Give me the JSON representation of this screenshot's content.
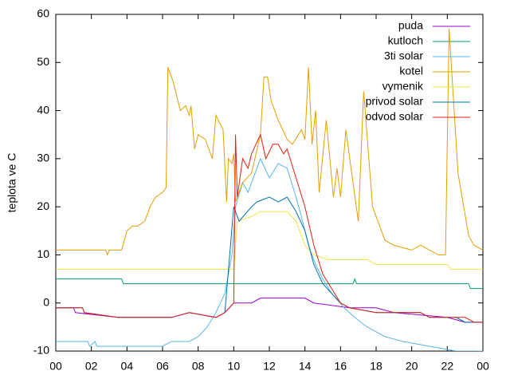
{
  "chart_data": {
    "type": "line",
    "ylabel": "teplota ve C",
    "xlim": [
      0,
      24
    ],
    "ylim": [
      -10,
      60
    ],
    "xticks": [
      {
        "value": 0,
        "label": "00"
      },
      {
        "value": 2,
        "label": "02"
      },
      {
        "value": 4,
        "label": "04"
      },
      {
        "value": 6,
        "label": "06"
      },
      {
        "value": 8,
        "label": "08"
      },
      10,
      12,
      14,
      16,
      18,
      20,
      22,
      {
        "value": 24,
        "label": "00"
      }
    ],
    "yticks": [
      -10,
      0,
      10,
      20,
      30,
      40,
      50,
      60
    ],
    "grid": false,
    "legend": "top-right",
    "series": [
      {
        "name": "puda",
        "color": "#9400d3",
        "x": [
          0,
          1,
          1.1,
          3.5,
          6.5,
          7.5,
          9,
          9.5,
          10,
          11,
          11.5,
          14,
          14.5,
          16.5,
          18,
          19,
          22,
          23,
          24
        ],
        "values": [
          -1,
          -1,
          -2,
          -3,
          -3,
          -2,
          -3,
          -2,
          0,
          0,
          1,
          1,
          0,
          -1,
          -1,
          -2,
          -3,
          -4,
          -4
        ]
      },
      {
        "name": "kutloch",
        "color": "#009e73",
        "x": [
          0,
          3.7,
          3.8,
          16.7,
          16.8,
          16.9,
          23.2,
          23.3,
          24
        ],
        "values": [
          5,
          5,
          4,
          4,
          5,
          4,
          4,
          3,
          3
        ]
      },
      {
        "name": "3ti solar",
        "color": "#56b4e9",
        "x": [
          0,
          1.8,
          1.9,
          2.2,
          2.3,
          6,
          6.5,
          7.5,
          8,
          8.5,
          9,
          9.5,
          9.9,
          10.1,
          10.5,
          10.8,
          11.2,
          11.5,
          12,
          12.5,
          13,
          13.5,
          13.8,
          14.2,
          14.6,
          15,
          15.5,
          16.2,
          16.8,
          17.5,
          18.5,
          19.5,
          21,
          22.5,
          24
        ],
        "values": [
          -8,
          -8,
          -9,
          -8,
          -9,
          -9,
          -8,
          -8,
          -7,
          -5,
          -2,
          2,
          10,
          20,
          25,
          23,
          27,
          30,
          26,
          29,
          28,
          22,
          18,
          12,
          8,
          5,
          2,
          -1,
          -3,
          -5,
          -7,
          -8,
          -9,
          -10,
          -10
        ]
      },
      {
        "name": "kotel",
        "color": "#e69f00",
        "x": [
          0,
          2.8,
          2.9,
          3,
          3.7,
          4,
          4.3,
          4.6,
          5,
          5.3,
          5.6,
          6,
          6.2,
          6.3,
          6.6,
          7,
          7.3,
          7.5,
          7.6,
          7.8,
          8,
          8.4,
          8.8,
          9,
          9.4,
          9.6,
          9.7,
          9.9,
          10,
          10.1,
          10.5,
          11,
          11.5,
          11.7,
          11.9,
          12.1,
          12.5,
          13,
          13.3,
          13.8,
          14,
          14.2,
          14.4,
          14.6,
          14.8,
          15.2,
          15.6,
          15.8,
          16,
          16.3,
          16.7,
          17,
          17.3,
          17.8,
          18.5,
          19,
          20,
          20.5,
          21.5,
          21.9,
          22.1,
          22.6,
          23.2,
          23.5,
          24
        ],
        "values": [
          11,
          11,
          10,
          11,
          11,
          15,
          16,
          16,
          17,
          20,
          22,
          23,
          24,
          49,
          46,
          40,
          41,
          39,
          41,
          32,
          35,
          34,
          30,
          39,
          36,
          21,
          30,
          29,
          31,
          21,
          25,
          27,
          35,
          47,
          47,
          42,
          38,
          34,
          33,
          36,
          34,
          49,
          33,
          40,
          23,
          38,
          22,
          28,
          22,
          36,
          25,
          17,
          44,
          20,
          13,
          12,
          11,
          12,
          10,
          10,
          57,
          27,
          14,
          12,
          11
        ]
      },
      {
        "name": "vymenik",
        "color": "#f0e442",
        "x": [
          0,
          10,
          10.2,
          11,
          11.5,
          13,
          13.5,
          14,
          14.5,
          15.3,
          17.5,
          18,
          22,
          22.2,
          24
        ],
        "values": [
          7,
          7,
          17,
          18,
          19,
          19,
          17,
          12,
          10,
          9,
          9,
          8,
          8,
          7,
          7
        ]
      },
      {
        "name": "privod solar",
        "color": "#0072b2",
        "x": [
          0,
          1.5,
          1.6,
          3.5,
          6.5,
          7.5,
          9,
          9.5,
          10,
          10.3,
          11,
          11.3,
          12,
          12.5,
          13,
          13.5,
          14,
          14.5,
          15,
          15.5,
          16,
          16.5,
          18,
          20.5,
          21,
          22.5,
          23,
          24
        ],
        "values": [
          -1,
          -1,
          -2,
          -3,
          -3,
          -2,
          -3,
          -2,
          20,
          17,
          20,
          21,
          22,
          21,
          22,
          19,
          15,
          8,
          4,
          2,
          0,
          -1,
          -2,
          -2,
          -3,
          -3,
          -4,
          -4
        ]
      },
      {
        "name": "odvod solar",
        "color": "#e51e10",
        "x": [
          0,
          1.5,
          1.6,
          3.5,
          6.5,
          7.5,
          9,
          9.5,
          10,
          10.1,
          10.2,
          10.5,
          10.8,
          11,
          11.5,
          11.8,
          12.2,
          12.5,
          12.8,
          13,
          13.5,
          14,
          14.5,
          15,
          15.5,
          16,
          16.5,
          18,
          20.5,
          21,
          23,
          23.5,
          24
        ],
        "values": [
          -1,
          -1,
          -2,
          -3,
          -3,
          -2,
          -3,
          -2,
          0,
          35,
          22,
          30,
          28,
          31,
          35,
          30,
          33,
          33,
          31,
          32,
          26,
          20,
          12,
          6,
          3,
          0,
          -1,
          -2,
          -2,
          -3,
          -3,
          -4,
          -4
        ]
      }
    ]
  }
}
